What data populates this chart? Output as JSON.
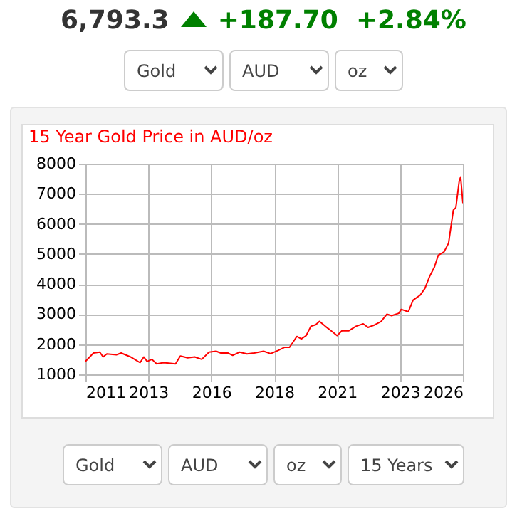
{
  "chart_data": {
    "type": "line",
    "title": "15 Year Gold Price in AUD/oz",
    "x": [
      2011.0,
      2011.32,
      2011.57,
      2011.7,
      2011.85,
      2012.23,
      2012.42,
      2012.79,
      2013.17,
      2013.32,
      2013.45,
      2013.64,
      2013.83,
      2014.11,
      2014.58,
      2014.77,
      2015.06,
      2015.34,
      2015.62,
      2015.91,
      2016.19,
      2016.38,
      2016.66,
      2016.85,
      2017.13,
      2017.42,
      2017.7,
      2018.08,
      2018.36,
      2018.64,
      2018.92,
      2019.11,
      2019.4,
      2019.58,
      2019.77,
      2019.96,
      2020.15,
      2020.3,
      2020.53,
      2020.81,
      2021.0,
      2021.19,
      2021.47,
      2021.75,
      2022.04,
      2022.23,
      2022.51,
      2022.75,
      2022.98,
      2023.17,
      2023.45,
      2023.55,
      2023.83,
      2024.02,
      2024.3,
      2024.49,
      2024.68,
      2024.87,
      2025.02,
      2025.25,
      2025.43,
      2025.62,
      2025.72,
      2025.85,
      2025.91,
      2026.0
    ],
    "series": [
      {
        "color": "#ff0000",
        "values": [
          1430,
          1710,
          1740,
          1580,
          1680,
          1650,
          1710,
          1580,
          1390,
          1580,
          1430,
          1500,
          1350,
          1390,
          1350,
          1610,
          1550,
          1580,
          1500,
          1740,
          1770,
          1710,
          1710,
          1630,
          1740,
          1680,
          1710,
          1770,
          1690,
          1790,
          1900,
          1900,
          2260,
          2180,
          2290,
          2600,
          2650,
          2760,
          2600,
          2420,
          2290,
          2450,
          2450,
          2600,
          2680,
          2560,
          2650,
          2760,
          3000,
          2950,
          3030,
          3160,
          3080,
          3470,
          3630,
          3860,
          4260,
          4570,
          4960,
          5070,
          5360,
          6460,
          6540,
          7400,
          7560,
          6690
        ]
      }
    ],
    "xlim": [
      2011,
      2026
    ],
    "xticks": [
      2011,
      {
        "value": 2013.5,
        "label": "2013"
      },
      2016,
      {
        "value": 2018.5,
        "label": "2018"
      },
      2021,
      {
        "value": 2023.5,
        "label": "2023"
      },
      2026
    ],
    "ylim": [
      1000,
      8000
    ],
    "yticks": [
      1000,
      2000,
      3000,
      4000,
      5000,
      6000,
      7000,
      8000
    ],
    "grid": true,
    "marker": "none",
    "line_style": "solid",
    "legend": false,
    "annotations": [
      "6,793.3",
      "+187.70",
      "+2.84%",
      "Gold",
      "AUD",
      "oz",
      "Gold",
      "AUD",
      "oz",
      "15 Years"
    ]
  }
}
